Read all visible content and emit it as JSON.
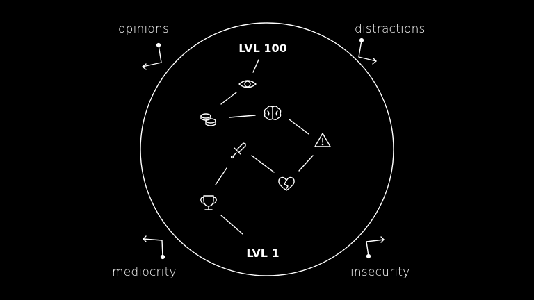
{
  "colors": {
    "background": "#000000",
    "foreground": "#ffffff"
  },
  "levels": {
    "top": "LVL 100",
    "bottom": "LVL 1"
  },
  "forces": {
    "top_left": "opinions",
    "top_right": "distractions",
    "bottom_left": "mediocrity",
    "bottom_right": "insecurity"
  },
  "path_icons": [
    "trophy-icon",
    "sword-icon",
    "broken-heart-icon",
    "warning-icon",
    "brain-icon",
    "coins-icon",
    "eye-icon"
  ]
}
